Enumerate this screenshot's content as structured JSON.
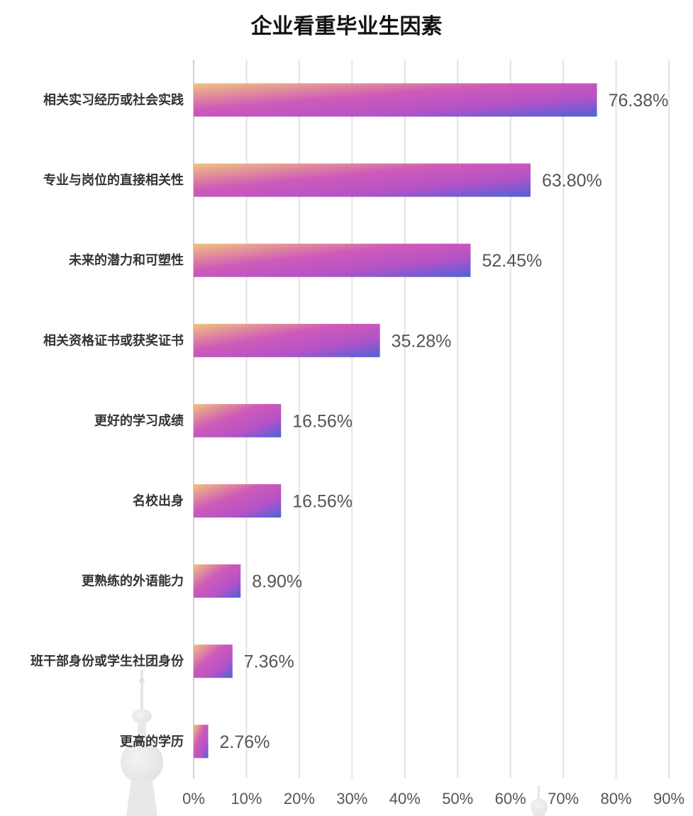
{
  "chart_data": {
    "type": "bar",
    "orientation": "horizontal",
    "title": "企业看重毕业生因素",
    "categories": [
      "相关实习经历或社会实践",
      "专业与岗位的直接相关性",
      "未来的潜力和可塑性",
      "相关资格证书或获奖证书",
      "更好的学习成绩",
      "名校出身",
      "更熟练的外语能力",
      "班干部身份或学生社团身份",
      "更高的学历"
    ],
    "values": [
      76.38,
      63.8,
      52.45,
      35.28,
      16.56,
      16.56,
      8.9,
      7.36,
      2.76
    ],
    "value_labels": [
      "76.38%",
      "63.80%",
      "52.45%",
      "35.28%",
      "16.56%",
      "16.56%",
      "8.90%",
      "7.36%",
      "2.76%"
    ],
    "xlim": [
      0,
      90
    ],
    "x_ticks": [
      "0%",
      "10%",
      "20%",
      "30%",
      "40%",
      "50%",
      "60%",
      "70%",
      "80%",
      "90%"
    ],
    "grid": true,
    "bar_gradient": [
      "#f2c27e",
      "#cf5ab8",
      "#b453c7",
      "#4d62d6"
    ]
  }
}
